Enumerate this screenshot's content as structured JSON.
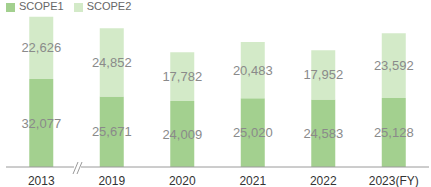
{
  "chart_data": {
    "type": "bar",
    "stacked": true,
    "data_labels": true,
    "tick_labels": "x",
    "legend": "top-left",
    "categories": [
      "2013",
      "2019",
      "2020",
      "2021",
      "2022",
      "2023(FY)"
    ],
    "ylim": [
      0,
      55000
    ],
    "series": [
      {
        "name": "SCOPE1",
        "color": "#a3d08f",
        "values": [
          32077,
          25671,
          24009,
          25020,
          24583,
          25128
        ],
        "value_labels": [
          "32,077",
          "25,671",
          "24,009",
          "25,020",
          "24,583",
          "25,128"
        ]
      },
      {
        "name": "SCOPE2",
        "color": "#d3eac8",
        "values": [
          22626,
          24852,
          17782,
          20483,
          17952,
          23592
        ],
        "value_labels": [
          "22,626",
          "24,852",
          "17,782",
          "20,483",
          "17,952",
          "23,592"
        ]
      }
    ]
  }
}
